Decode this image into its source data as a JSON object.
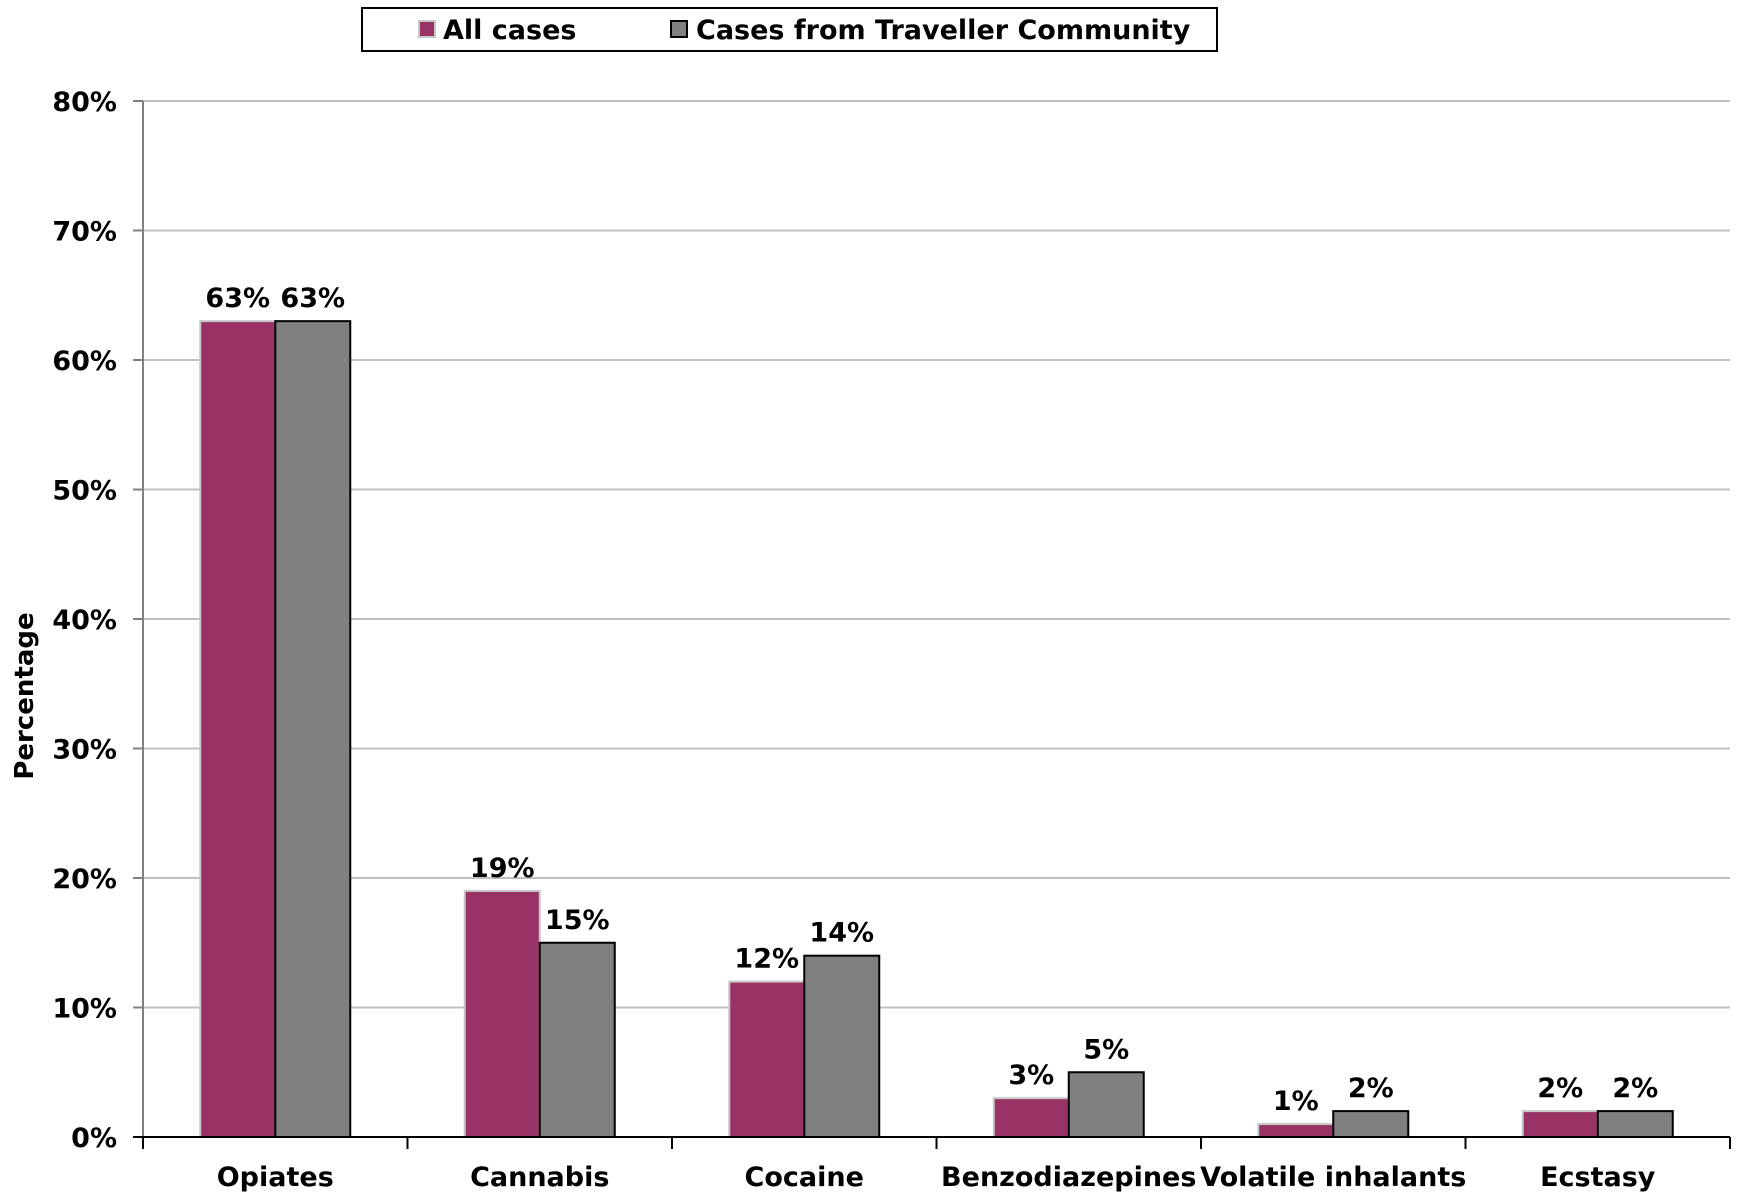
{
  "chart_data": {
    "type": "bar",
    "categories": [
      "Opiates",
      "Cannabis",
      "Cocaine",
      "Benzodiazepines",
      "Volatile inhalants",
      "Ecstasy"
    ],
    "series": [
      {
        "name": "All cases",
        "values": [
          63,
          19,
          12,
          3,
          1,
          2
        ],
        "color": "#993366"
      },
      {
        "name": "Cases from Traveller Community",
        "values": [
          63,
          15,
          14,
          5,
          2,
          2
        ],
        "color": "#808080"
      }
    ],
    "data_labels": [
      [
        "63%",
        "19%",
        "12%",
        "3%",
        "1%",
        "2%"
      ],
      [
        "63%",
        "15%",
        "14%",
        "5%",
        "2%",
        "2%"
      ]
    ],
    "ylabel": "Percentage",
    "ylim": [
      0,
      80
    ],
    "yticks": [
      0,
      10,
      20,
      30,
      40,
      50,
      60,
      70,
      80
    ],
    "ytick_labels": [
      "0%",
      "10%",
      "20%",
      "30%",
      "40%",
      "50%",
      "60%",
      "70%",
      "80%"
    ],
    "grid": true,
    "legend_position": "top"
  }
}
